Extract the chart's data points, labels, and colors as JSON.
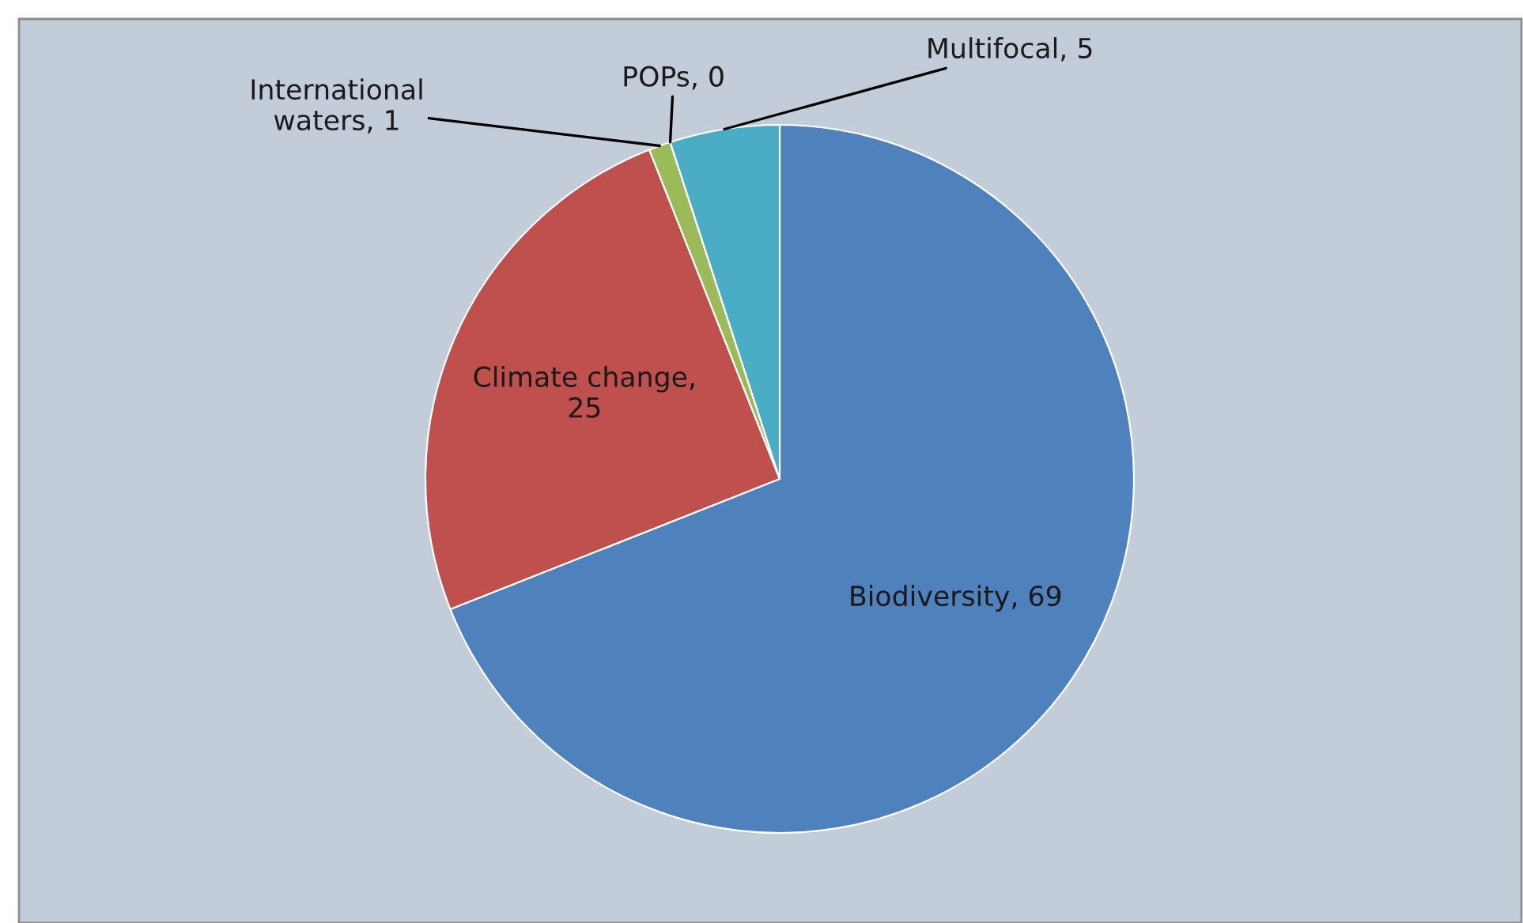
{
  "chart_data": {
    "type": "pie",
    "categories": [
      "Biodiversity",
      "Climate change",
      "International waters",
      "POPs",
      "Multifocal"
    ],
    "values": [
      69,
      25,
      1,
      0,
      5
    ],
    "value_labels": [
      ", 69",
      ", 25",
      ", 1",
      ", 0",
      ", 5"
    ],
    "colors": [
      "#4f81bd",
      "#c0504d",
      "#9bbb59",
      "#8064a2",
      "#4bacc6"
    ]
  }
}
